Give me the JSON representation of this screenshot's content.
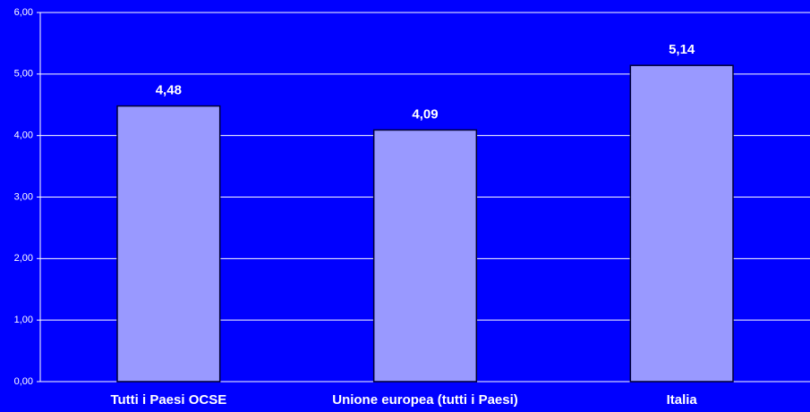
{
  "chart_data": {
    "type": "bar",
    "categories": [
      "Tutti i Paesi OCSE",
      "Unione europea (tutti i Paesi)",
      "Italia"
    ],
    "values": [
      4.48,
      4.09,
      5.14
    ],
    "value_labels": [
      "4,48",
      "4,09",
      "5,14"
    ],
    "color": "#9999ff",
    "ylim": [
      0,
      6
    ],
    "yticks": [
      {
        "value": 0,
        "label": "0,00"
      },
      {
        "value": 1,
        "label": "1,00"
      },
      {
        "value": 2,
        "label": "2,00"
      },
      {
        "value": 3,
        "label": "3,00"
      },
      {
        "value": 4,
        "label": "4,00"
      },
      {
        "value": 5,
        "label": "5,00"
      },
      {
        "value": 6,
        "label": "6,00"
      }
    ],
    "grid": true
  }
}
